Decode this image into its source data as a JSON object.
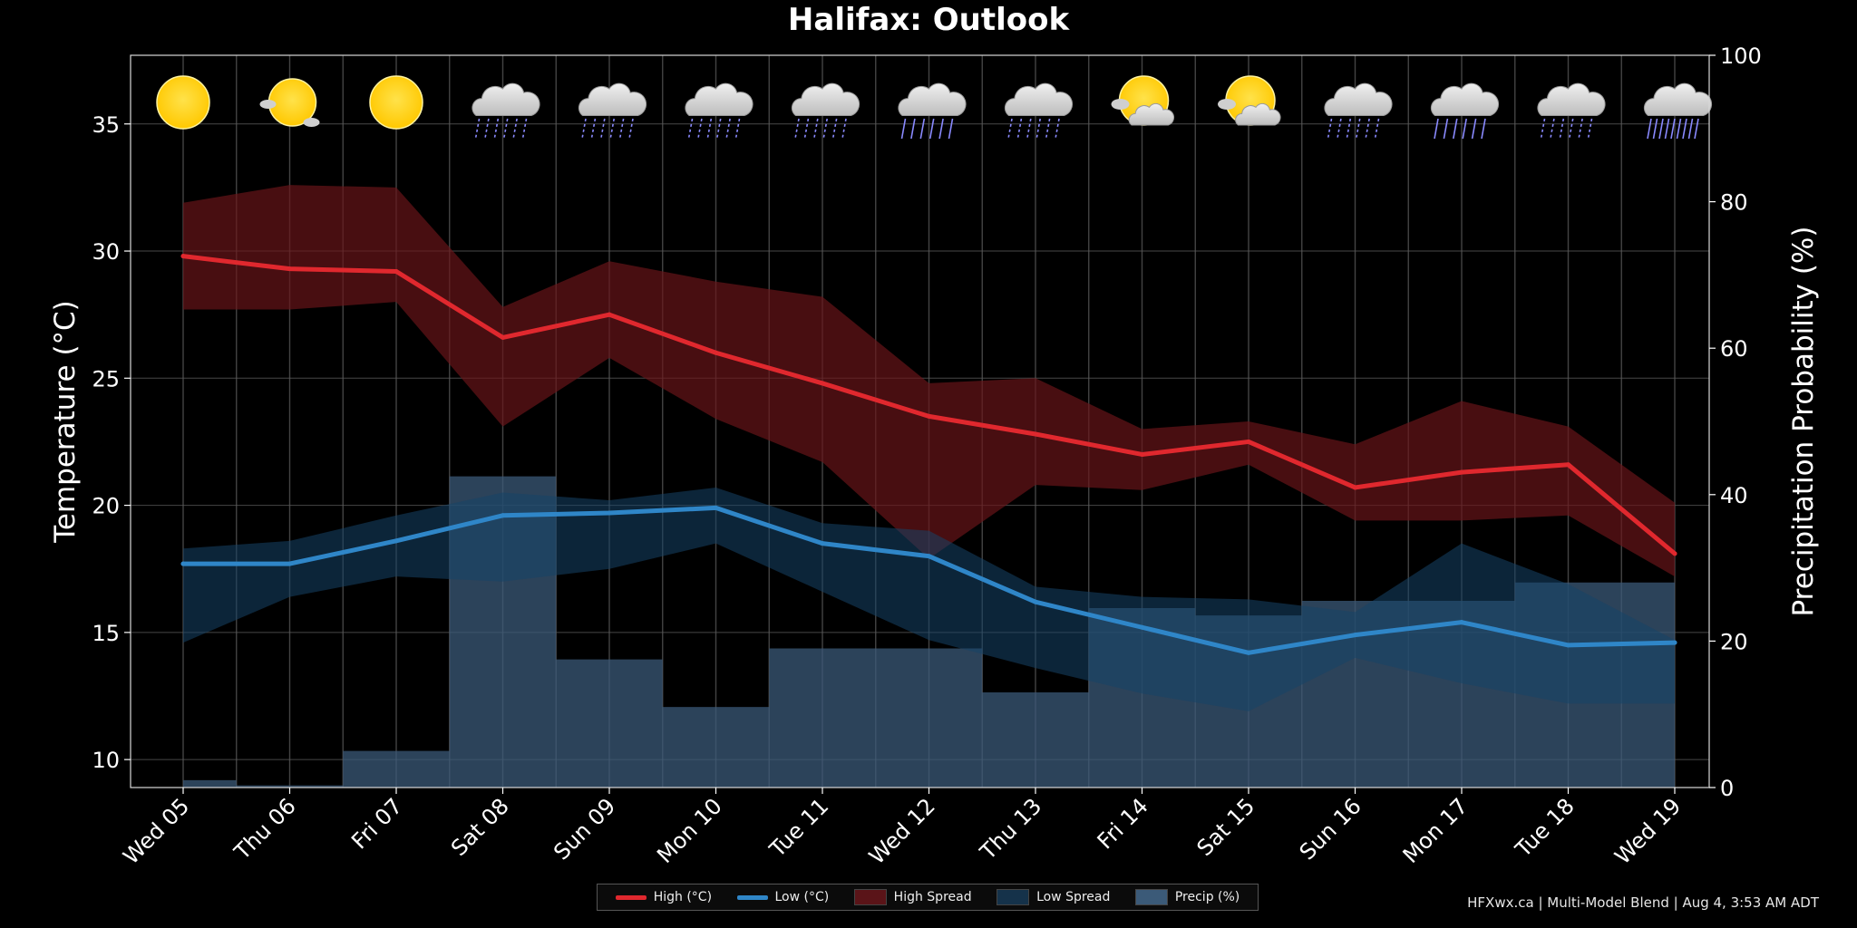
{
  "title": "Halifax: Outlook",
  "footer": "HFXwx.ca | Multi-Model Blend | Aug 4, 3:53 AM ADT",
  "colors": {
    "background": "#000000",
    "high": "#e0282e",
    "high_spread": "#4a0f12",
    "low": "#2f86c8",
    "low_spread": "#0f2a40",
    "precip": "#3b5a78",
    "grid": "#4a4a4a"
  },
  "legend": [
    {
      "label": "High (°C)",
      "kind": "line",
      "color": "#e0282e"
    },
    {
      "label": "Low (°C)",
      "kind": "line",
      "color": "#2f86c8"
    },
    {
      "label": "High Spread",
      "kind": "box",
      "color": "#5a1418"
    },
    {
      "label": "Low Spread",
      "kind": "box",
      "color": "#15324a"
    },
    {
      "label": "Precip (%)",
      "kind": "box",
      "color": "#3b5a78"
    }
  ],
  "chart_data": {
    "type": "line",
    "title": "Halifax: Outlook",
    "ylabel": "Temperature (°C)",
    "y2label": "Precipitation Probability (%)",
    "ylim": [
      8.9,
      37.7
    ],
    "y2lim": [
      0,
      100
    ],
    "yticks": [
      10,
      15,
      20,
      25,
      30,
      35
    ],
    "y2ticks": [
      0,
      20,
      40,
      60,
      80,
      100
    ],
    "grid": true,
    "legend_position": "bottom-center",
    "categories": [
      "Wed 05",
      "Thu 06",
      "Fri 07",
      "Sat 08",
      "Sun 09",
      "Mon 10",
      "Tue 11",
      "Wed 12",
      "Thu 13",
      "Fri 14",
      "Sat 15",
      "Sun 16",
      "Mon 17",
      "Tue 18",
      "Wed 19"
    ],
    "series": [
      {
        "name": "High (°C)",
        "type": "line",
        "values": [
          29.8,
          29.3,
          29.2,
          26.6,
          27.5,
          26.0,
          24.8,
          23.5,
          22.8,
          22.0,
          22.5,
          20.7,
          21.3,
          21.6,
          18.1
        ]
      },
      {
        "name": "Low (°C)",
        "type": "line",
        "values": [
          17.7,
          17.7,
          18.6,
          19.6,
          19.7,
          19.9,
          18.5,
          18.0,
          16.2,
          15.2,
          14.2,
          14.9,
          15.4,
          14.5,
          14.6
        ]
      },
      {
        "name": "High Spread",
        "type": "band",
        "upper": [
          31.9,
          32.6,
          32.5,
          27.8,
          29.6,
          28.8,
          28.2,
          24.8,
          25.0,
          23.0,
          23.3,
          22.4,
          24.1,
          23.1,
          20.1
        ],
        "lower": [
          27.7,
          27.7,
          28.0,
          23.1,
          25.8,
          23.4,
          21.7,
          17.9,
          20.8,
          20.6,
          21.6,
          19.4,
          19.4,
          19.6,
          17.2
        ]
      },
      {
        "name": "Low Spread",
        "type": "band",
        "upper": [
          18.3,
          18.6,
          19.6,
          20.5,
          20.2,
          20.7,
          19.3,
          19.0,
          16.8,
          16.4,
          16.3,
          15.8,
          18.5,
          16.9,
          14.7
        ],
        "lower": [
          14.6,
          16.4,
          17.2,
          17.0,
          17.5,
          18.5,
          16.6,
          14.7,
          13.6,
          12.6,
          11.9,
          14.0,
          13.0,
          12.2,
          12.2
        ]
      },
      {
        "name": "Precip (%)",
        "type": "step",
        "axis": "right",
        "values": [
          1,
          0.3,
          5,
          42.5,
          17.5,
          11,
          19,
          19,
          13,
          24.5,
          23.5,
          25.5,
          25.5,
          28,
          28
        ]
      }
    ],
    "weather_icons": [
      "sunny",
      "mostly-sunny",
      "sunny",
      "showers",
      "showers",
      "showers",
      "showers",
      "rain",
      "showers",
      "partly-sunny",
      "partly-sunny",
      "showers",
      "rain",
      "showers",
      "heavy-rain"
    ]
  }
}
